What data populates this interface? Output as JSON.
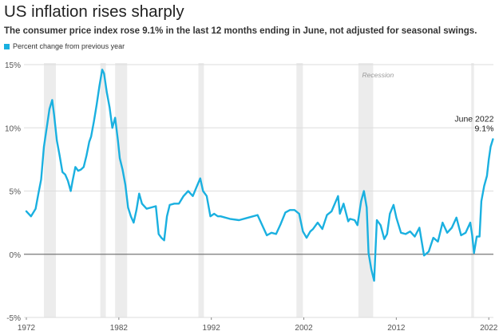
{
  "chart_data": {
    "type": "line",
    "title": "US inflation rises sharply",
    "subtitle": "The consumer price index rose 9.1% in the last 12 months ending in June, not adjusted for seasonal swings.",
    "legend": [
      {
        "label": "Percent change from previous year",
        "color": "#1ab0e0"
      }
    ],
    "legend_position": "top-left",
    "xlabel": "",
    "ylabel": "",
    "xlim": [
      1972,
      2022.5
    ],
    "ylim": [
      -5,
      15
    ],
    "x_ticks": [
      "1972",
      "1982",
      "1992",
      "2002",
      "2012",
      "2022"
    ],
    "y_ticks": [
      "15%",
      "10%",
      "5%",
      "0%",
      "-5%"
    ],
    "grid": "horizontal",
    "recession_label": "Recession",
    "recessions": [
      [
        1973.9,
        1975.2
      ],
      [
        1980.0,
        1980.6
      ],
      [
        1981.6,
        1982.9
      ],
      [
        1990.6,
        1991.2
      ],
      [
        2001.2,
        2001.9
      ],
      [
        2007.9,
        2009.5
      ],
      [
        2020.1,
        2020.4
      ]
    ],
    "annotation": {
      "line1": "June 2022",
      "line2": "9.1%",
      "x": 2022.45,
      "y": 9.1
    },
    "series": [
      {
        "color": "#1ab0e0",
        "x": [
          1972.0,
          1972.5,
          1973.0,
          1973.3,
          1973.6,
          1973.9,
          1974.2,
          1974.5,
          1974.8,
          1975.0,
          1975.3,
          1975.6,
          1975.9,
          1976.2,
          1976.5,
          1976.8,
          1977.0,
          1977.3,
          1977.6,
          1977.9,
          1978.2,
          1978.5,
          1978.8,
          1979.0,
          1979.3,
          1979.6,
          1979.9,
          1980.2,
          1980.4,
          1980.7,
          1981.0,
          1981.3,
          1981.6,
          1981.9,
          1982.1,
          1982.4,
          1982.7,
          1983.0,
          1983.3,
          1983.6,
          1983.9,
          1984.2,
          1984.5,
          1985.0,
          1985.5,
          1986.0,
          1986.3,
          1986.6,
          1986.9,
          1987.2,
          1987.5,
          1988.0,
          1988.5,
          1989.0,
          1989.5,
          1990.0,
          1990.4,
          1990.8,
          1991.1,
          1991.5,
          1991.9,
          1992.3,
          1992.7,
          1993.0,
          1994.0,
          1995.0,
          1996.0,
          1997.0,
          1998.0,
          1998.5,
          1999.0,
          1999.5,
          2000.0,
          2000.5,
          2001.0,
          2001.5,
          2001.9,
          2002.3,
          2002.7,
          2003.0,
          2003.5,
          2004.0,
          2004.5,
          2005.0,
          2005.7,
          2005.9,
          2006.3,
          2006.8,
          2007.0,
          2007.5,
          2007.8,
          2008.2,
          2008.5,
          2008.8,
          2009.0,
          2009.3,
          2009.6,
          2009.9,
          2010.3,
          2010.7,
          2011.0,
          2011.3,
          2011.7,
          2012.0,
          2012.5,
          2013.0,
          2013.5,
          2014.0,
          2014.5,
          2015.0,
          2015.5,
          2016.0,
          2016.5,
          2017.0,
          2017.5,
          2018.0,
          2018.5,
          2019.0,
          2019.5,
          2020.0,
          2020.2,
          2020.4,
          2020.7,
          2021.0,
          2021.2,
          2021.5,
          2021.8,
          2022.0,
          2022.2,
          2022.45
        ],
        "values": [
          3.4,
          3.0,
          3.6,
          4.8,
          5.9,
          8.5,
          10.0,
          11.5,
          12.2,
          11.0,
          9.0,
          7.8,
          6.5,
          6.3,
          5.8,
          5.0,
          5.8,
          6.9,
          6.6,
          6.7,
          6.9,
          7.8,
          8.9,
          9.3,
          10.5,
          11.8,
          13.3,
          14.6,
          14.3,
          12.8,
          11.6,
          10.0,
          10.8,
          9.0,
          7.6,
          6.7,
          5.5,
          3.7,
          3.0,
          2.5,
          3.5,
          4.8,
          4.0,
          3.6,
          3.7,
          3.8,
          1.6,
          1.3,
          1.1,
          3.0,
          3.9,
          4.0,
          4.0,
          4.6,
          5.0,
          4.6,
          5.3,
          6.0,
          5.0,
          4.6,
          3.0,
          3.2,
          3.0,
          3.0,
          2.8,
          2.7,
          2.9,
          3.1,
          1.5,
          1.7,
          1.6,
          2.4,
          3.3,
          3.5,
          3.5,
          3.2,
          1.8,
          1.3,
          1.8,
          2.0,
          2.5,
          2.0,
          3.1,
          3.4,
          4.6,
          3.2,
          4.0,
          2.6,
          2.8,
          2.7,
          2.3,
          4.2,
          5.0,
          3.7,
          0.1,
          -1.2,
          -2.1,
          2.7,
          2.3,
          1.2,
          1.6,
          3.2,
          3.9,
          2.9,
          1.7,
          1.6,
          1.8,
          1.4,
          2.1,
          -0.1,
          0.2,
          1.3,
          1.0,
          2.5,
          1.7,
          2.1,
          2.9,
          1.5,
          1.7,
          2.5,
          1.5,
          0.1,
          1.4,
          1.4,
          4.2,
          5.4,
          6.2,
          7.5,
          8.5,
          9.1
        ]
      }
    ]
  }
}
